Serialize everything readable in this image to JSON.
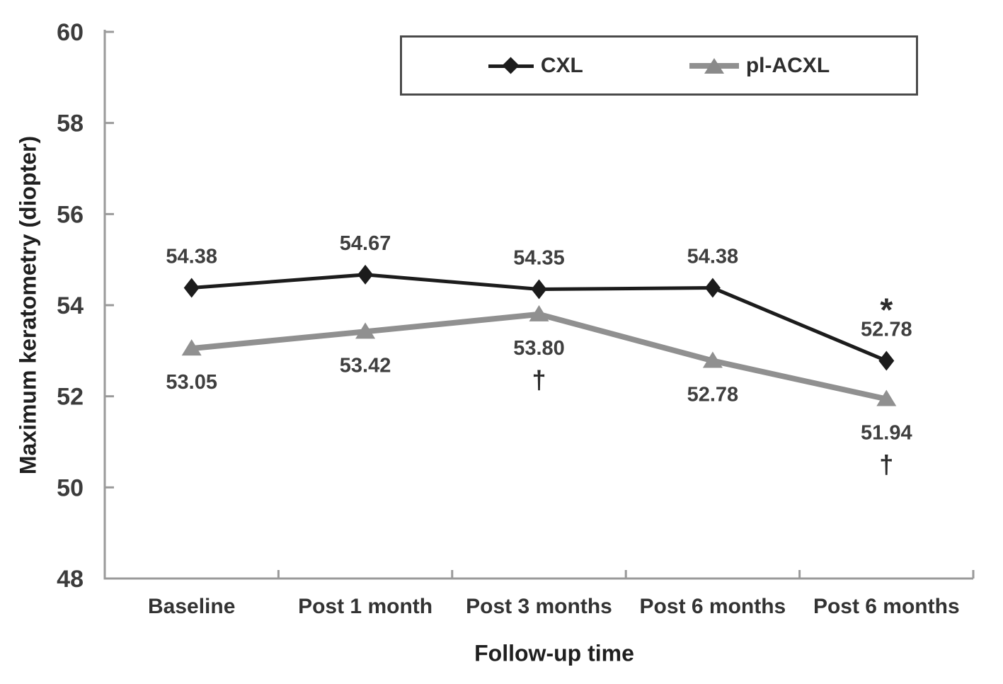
{
  "chart_data": {
    "type": "line",
    "title": "",
    "xlabel": "Follow-up time",
    "ylabel": "Maximum keratometry (diopter)",
    "categories": [
      "Baseline",
      "Post 1 month",
      "Post 3 months",
      "Post 6 months",
      "Post 6 months"
    ],
    "ylim": [
      48,
      60
    ],
    "yticks": [
      48,
      50,
      52,
      54,
      56,
      58,
      60
    ],
    "grid": false,
    "legend_position": "top-center-boxed",
    "series": [
      {
        "name": "CXL",
        "values": [
          54.38,
          54.67,
          54.35,
          54.38,
          52.78
        ],
        "color": "#1c1c1c",
        "marker": "diamond",
        "line_width": 5,
        "label_position": "above",
        "annotations": [
          {
            "index": 4,
            "symbol": "*",
            "position": "above-label"
          }
        ]
      },
      {
        "name": "pl-ACXL",
        "values": [
          53.05,
          53.42,
          53.8,
          52.78,
          51.94
        ],
        "color": "#909090",
        "marker": "triangle",
        "line_width": 8,
        "label_position": "below",
        "annotations": [
          {
            "index": 2,
            "symbol": "†",
            "position": "below-label"
          },
          {
            "index": 4,
            "symbol": "†",
            "position": "below-label"
          }
        ]
      }
    ],
    "colors": {
      "axis": "#9a9a9a",
      "tick_label": "#3c3c3c",
      "category_label": "#333333",
      "data_label": "#3f3f3f",
      "annotation": "#2b2b2b",
      "legend_border": "#4a4a4a"
    }
  }
}
